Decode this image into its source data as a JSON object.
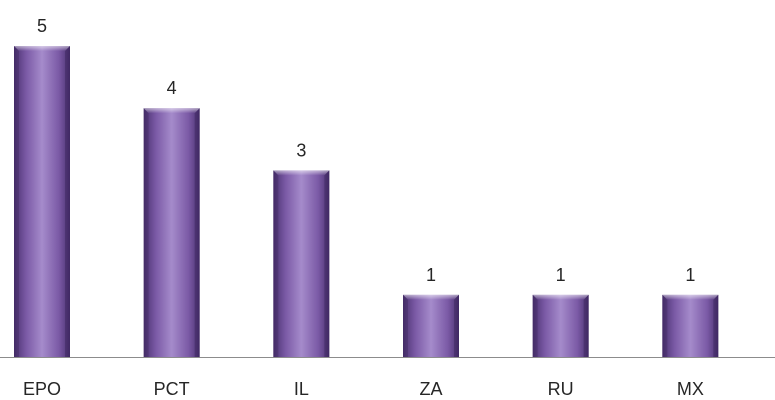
{
  "chart_data": {
    "type": "bar",
    "categories": [
      "EPO",
      "PCT",
      "IL",
      "ZA",
      "RU",
      "MX"
    ],
    "values": [
      5,
      4,
      3,
      1,
      1,
      1
    ],
    "data_labels": [
      "5",
      "4",
      "3",
      "1",
      "1",
      "1"
    ],
    "title": "",
    "xlabel": "",
    "ylabel": "",
    "ylim": [
      0,
      5
    ],
    "grid": false,
    "legend": "none",
    "bar_color": "#7b5aa6",
    "bar_color_light": "#a58bcb",
    "bar_color_dark": "#4a3170",
    "axis_color": "#8c8c8c"
  }
}
